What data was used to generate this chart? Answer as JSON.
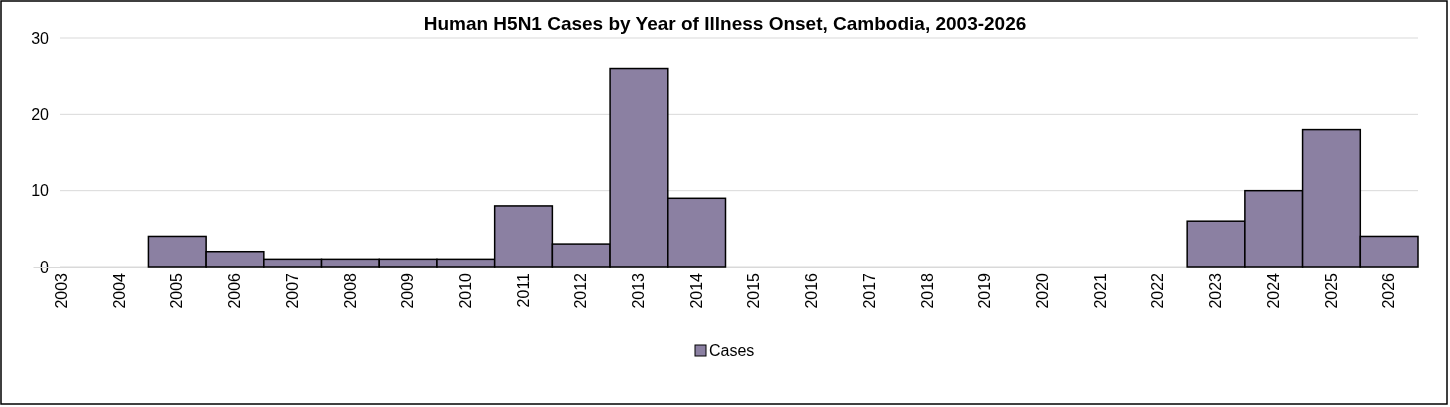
{
  "chart_data": {
    "type": "bar",
    "title": "Human H5N1 Cases by Year of Illness Onset, Cambodia, 2003-2026",
    "categories": [
      "2003",
      "2004",
      "2005",
      "2006",
      "2007",
      "2008",
      "2009",
      "2010",
      "2011",
      "2012",
      "2013",
      "2014",
      "2015",
      "2016",
      "2017",
      "2018",
      "2019",
      "2020",
      "2021",
      "2022",
      "2023",
      "2024",
      "2025",
      "2026"
    ],
    "series": [
      {
        "name": "Cases",
        "color": "#8b80a2",
        "values": [
          0,
          0,
          4,
          2,
          1,
          1,
          1,
          1,
          8,
          3,
          26,
          9,
          0,
          0,
          0,
          0,
          0,
          0,
          0,
          0,
          6,
          10,
          18,
          4
        ]
      }
    ],
    "ylim": [
      0,
      30
    ],
    "yticks": [
      0,
      10,
      20,
      30
    ],
    "grid": "y",
    "legend": "bottom"
  }
}
